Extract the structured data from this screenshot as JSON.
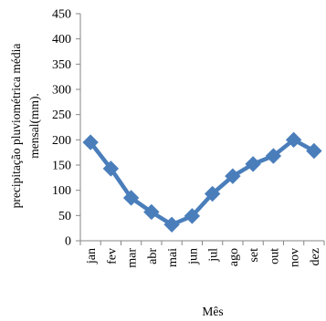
{
  "chart_data": {
    "type": "line",
    "title": "",
    "xlabel": "Mês",
    "ylabel_lines": [
      "precipitação pluviométrica média",
      "mensal(mm)."
    ],
    "categories": [
      "jan",
      "fev",
      "mar",
      "abr",
      "mai",
      "jun",
      "jul",
      "ago",
      "set",
      "out",
      "nov",
      "dez"
    ],
    "series": [
      {
        "values": [
          195,
          143,
          85,
          57,
          32,
          49,
          93,
          128,
          152,
          168,
          200,
          178
        ]
      }
    ],
    "ylim": [
      0,
      450
    ],
    "yticks": [
      0,
      50,
      100,
      150,
      200,
      250,
      300,
      350,
      400,
      450
    ],
    "grid": false,
    "legend": "none",
    "colors": {
      "series": "#4a7ebb",
      "axis": "#868686"
    }
  }
}
